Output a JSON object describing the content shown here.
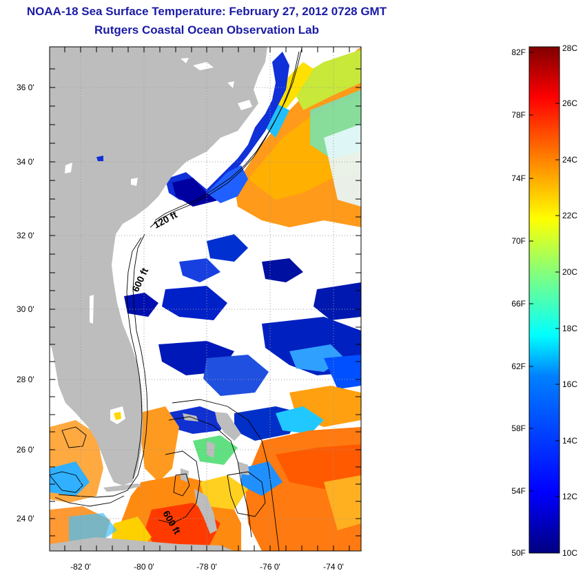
{
  "header": {
    "title": "NOAA-18 Sea Surface Temperature:  February 27, 2012 0728 GMT",
    "subtitle": "Rutgers Coastal Ocean Observation Lab"
  },
  "map": {
    "lat_labels": [
      "36 0'",
      "34 0'",
      "32 0'",
      "30 0'",
      "28 0'",
      "26 0'",
      "24 0'"
    ],
    "lon_labels": [
      "-82 0'",
      "-80 0'",
      "-78 0'",
      "-76 0'",
      "-74 0'"
    ],
    "isobath_labels": [
      "120 ft",
      "600 ft",
      "600 ft"
    ],
    "colors": {
      "land": "#bdbdbd",
      "cloud": "#ffffff",
      "grid": "#9a9a9a"
    }
  },
  "colorbar": {
    "fahrenheit_labels": [
      "82F",
      "78F",
      "74F",
      "70F",
      "66F",
      "62F",
      "58F",
      "54F",
      "50F"
    ],
    "celsius_labels": [
      "28C",
      "26C",
      "24C",
      "22C",
      "20C",
      "18C",
      "16C",
      "14C",
      "12C",
      "10C"
    ],
    "colormap": [
      "#000080",
      "#0000ff",
      "#0080ff",
      "#00ffff",
      "#80ff80",
      "#ffff00",
      "#ff8000",
      "#ff0000",
      "#800000"
    ]
  }
}
